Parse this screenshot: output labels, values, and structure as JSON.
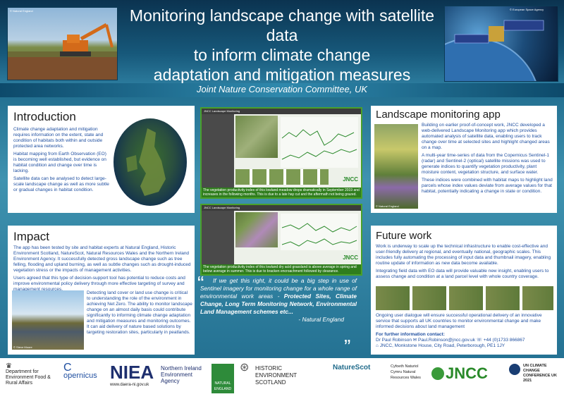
{
  "header": {
    "title_line1": "Monitoring landscape change with satellite data",
    "title_line2": "to inform climate change",
    "title_line3": "adaptation and mitigation measures",
    "subtitle": "Joint Nature Conservation Committee, UK"
  },
  "intro": {
    "heading": "Introduction",
    "p1": "Climate change adaptation and mitigation requires information on the extent, state and condition of habitats both within and outside protected area networks.",
    "p2": "Habitat mapping from Earth Observation (EO) is becoming well established, but evidence on habitat condition and change over time is lacking.",
    "p3": "Satellite data can be analysed to detect large-scale landscape change as well as more subtle or gradual changes in habitat condition."
  },
  "impact": {
    "heading": "Impact",
    "p1": "The app has been tested by site and habitat experts at Natural England, Historic Environment Scotland, NatureScot, Natural Resources Wales and the Northern Ireland Environment Agency. It successfully detected gross landscape change such as tree felling, flooding and upland burning, as well as subtle changes such as drought-induced vegetation stress or the impacts of management activities.",
    "p2": "Users agreed that this type of decision-support tool has potential to reduce costs and improve environmental policy delivery through more effective targeting of survey and management resources.",
    "p3": "Detecting land cover or land use change is critical to understanding the role of the environment in achieving Net Zero. The ability to monitor landscape change on an almost daily basis could contribute significantly to informing climate change adaptation and mitigation measures and monitoring outcomes. It can aid delivery of nature based solutions by targeting restoration sites, particularly in peatlands."
  },
  "app": {
    "heading": "Landscape monitoring app",
    "p1": "Building on earlier proof-of-concept work, JNCC developed a web-delivered Landscape Monitoring app which provides automated analysis of satellite data, enabling users to track change over time at selected sites and highlight changed areas on a map.",
    "p2": "A multi-year time-series of data from the Copernicus Sentinel-1 (radar) and Sentinel-2 (optical) satellite missions was used to generate indices to quantify vegetation productivity, plant moisture content, vegetation structure, and surface water.",
    "p3": "These indices were combined with habitat maps to highlight land parcels whose index values deviate from average values for that habitat, potentially indicating a change in state or condition."
  },
  "future": {
    "heading": "Future work",
    "p1": "Work is underway to scale up the technical infrastructure to enable cost-effective and user-friendly delivery at regional, and eventually national, geographic scales. This includes fully automating the processing of input data and thumbnail imagery, enabling routine update of information as new data become available.",
    "p2": "Integrating field data with EO data will provide valuable new insight, enabling users to assess change and condition at a land parcel level with whole country coverage.",
    "p3": "Ongoing user dialogue will ensure successful operational delivery of an innovative service that supports all UK countries to monitor environmental change and make informed decisions about land management",
    "contact_heading": "For further information contact:",
    "contact_name": "Dr Paul Robinson",
    "contact_email": "Paul.Robinson@jncc.gov.uk",
    "contact_phone": "+44 (0)1733 866867",
    "contact_address": "JNCC, Monkstone House, City Road, Peterborough, PE1 1JY"
  },
  "screens": {
    "top_caption": "The vegetation productivity index of this lowland meadow drops dramatically in September 2019 and increases in the following months. This is due to a late hay cut and the aftermath not being grazed.",
    "bottom_caption": "The vegetation productivity index of this lowland dry acid grassland is above average in spring and below average in summer. This is due to bracken encroachment followed by clearance.",
    "app_title": "JNCC Landscape Monitoring",
    "jncc": "JNCC"
  },
  "quote": {
    "open": "“",
    "text1": "If we get this right, it could be a big step in use of Sentinel imagery for monitoring change for a whole range of environmental work areas -",
    "bold": "Protected Sites, Climate Change, Long Term Monitoring Network, Environmental Land Management schemes etc...",
    "attribution": "- Natural England",
    "close": "”"
  },
  "credits": {
    "hero_left": "© Natural England",
    "hero_right": "© European Space Agency",
    "impact_photo": "© Steve Moore",
    "app_photo": "© Natural England"
  },
  "logos": {
    "defra": "Department for Environment Food & Rural Affairs",
    "copernicus": "opernicus",
    "niea_short": "NIEA",
    "niea_url": "www.daera-ni.gov.uk",
    "niea_full": "Northern Ireland Environment Agency",
    "natural_england": "NATURAL ENGLAND",
    "hes": "HISTORIC ENVIRONMENT SCOTLAND",
    "naturescot": "NatureScot",
    "nrw": "Cyfoeth Naturiol Cymru Natural Resources Wales",
    "jncc": "JNCC",
    "cop": "UN CLIMATE CHANGE CONFERENCE UK 2021"
  },
  "colors": {
    "body_text": "#1f4fa0",
    "accent_green": "#4aa02a",
    "banner": "#0b3350"
  }
}
